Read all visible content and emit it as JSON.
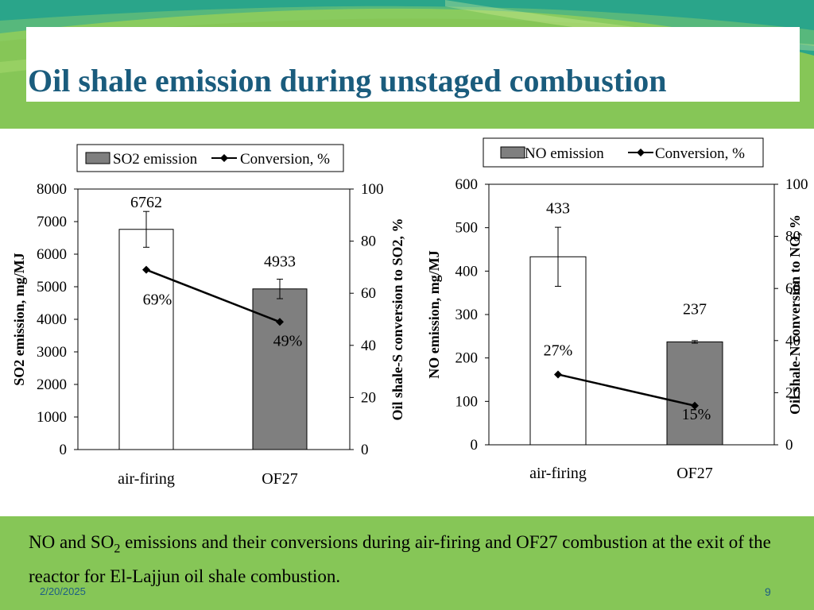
{
  "slide": {
    "title": "Oil shale emission during unstaged combustion",
    "caption_before_sub": "NO and SO",
    "caption_sub": "2",
    "caption_after_sub": " emissions and their conversions during air-firing and OF27 combustion at the exit of the reactor for El-Lajjun oil shale combustion.",
    "date": "2/20/2025",
    "page_number": "9"
  },
  "colors": {
    "title_text": "#1a5c7d",
    "slide_green": "#86c657",
    "banner_teal": "#2aa58a",
    "bar_air_firing": "#ffffff",
    "bar_of27": "#7f7f7f",
    "footer_text": "#1d5e85"
  },
  "chart_data": [
    {
      "type": "bar",
      "categories": [
        "air-firing",
        "OF27"
      ],
      "series": [
        {
          "name": "SO2 emission",
          "kind": "bar",
          "axis": "left",
          "values": [
            6762,
            4933
          ],
          "error": [
            550,
            300
          ],
          "value_labels": [
            "6762",
            "4933"
          ]
        },
        {
          "name": "Conversion, %",
          "kind": "line",
          "axis": "right",
          "values": [
            69,
            49
          ],
          "value_labels": [
            "69%",
            "49%"
          ]
        }
      ],
      "ylabel": "SO2 emission, mg/MJ",
      "ylim": [
        0,
        8000
      ],
      "yticks": [
        0,
        1000,
        2000,
        3000,
        4000,
        5000,
        6000,
        7000,
        8000
      ],
      "y2label": "Oil shale-S conversion to SO2, %",
      "y2lim": [
        0,
        100
      ],
      "y2ticks": [
        0,
        20,
        40,
        60,
        80,
        100
      ],
      "legend": "top",
      "grid": false
    },
    {
      "type": "bar",
      "categories": [
        "air-firing",
        "OF27"
      ],
      "series": [
        {
          "name": "NO emission",
          "kind": "bar",
          "axis": "left",
          "values": [
            433,
            237
          ],
          "error": [
            68,
            3
          ],
          "value_labels": [
            "433",
            "237"
          ]
        },
        {
          "name": "Conversion, %",
          "kind": "line",
          "axis": "right",
          "values": [
            27,
            15
          ],
          "value_labels": [
            "27%",
            "15%"
          ]
        }
      ],
      "ylabel": "NO emission, mg/MJ",
      "ylim": [
        0,
        600
      ],
      "yticks": [
        0,
        100,
        200,
        300,
        400,
        500,
        600
      ],
      "y2label": "Oil shale-N conversion to NO, %",
      "y2lim": [
        0,
        100
      ],
      "y2ticks": [
        0,
        20,
        40,
        60,
        80,
        100
      ],
      "legend": "top",
      "grid": false
    }
  ]
}
